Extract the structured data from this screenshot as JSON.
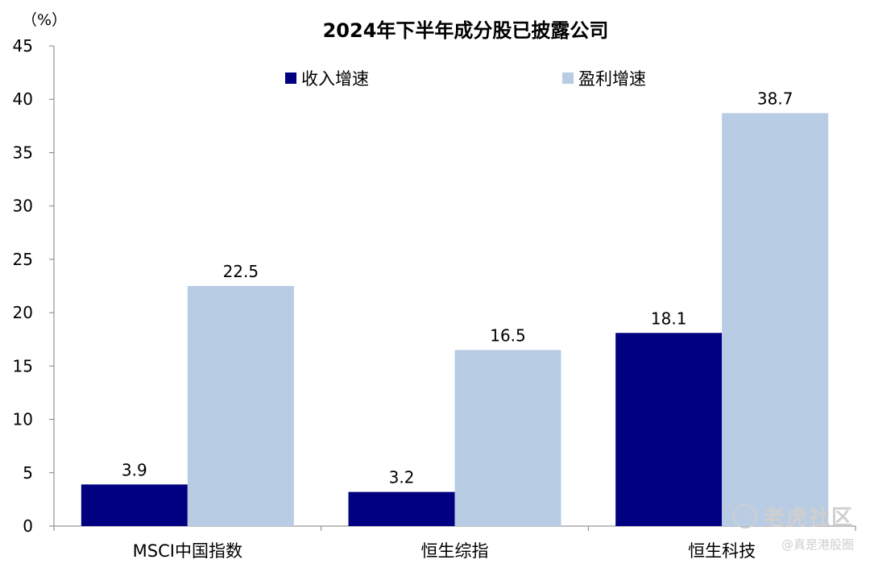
{
  "chart_data": {
    "type": "bar",
    "title": "2024年下半年成分股已披露公司",
    "y_unit_label": "（%）",
    "categories": [
      "MSCI中国指数",
      "恒生综指",
      "恒生科技"
    ],
    "series": [
      {
        "name": "收入增速",
        "values": [
          3.9,
          3.2,
          18.1
        ],
        "color": "#000080"
      },
      {
        "name": "盈利增速",
        "values": [
          22.5,
          16.5,
          38.7
        ],
        "color": "#B8CCE4"
      }
    ],
    "ylim": [
      0,
      45
    ],
    "yticks": [
      0,
      5,
      10,
      15,
      20,
      25,
      30,
      35,
      40,
      45
    ],
    "legend_position": "top-center",
    "grid": false
  },
  "watermark": {
    "brand": "老虎社区",
    "handle": "@真是港股圈",
    "logo_icon": "tiger-logo-icon"
  }
}
